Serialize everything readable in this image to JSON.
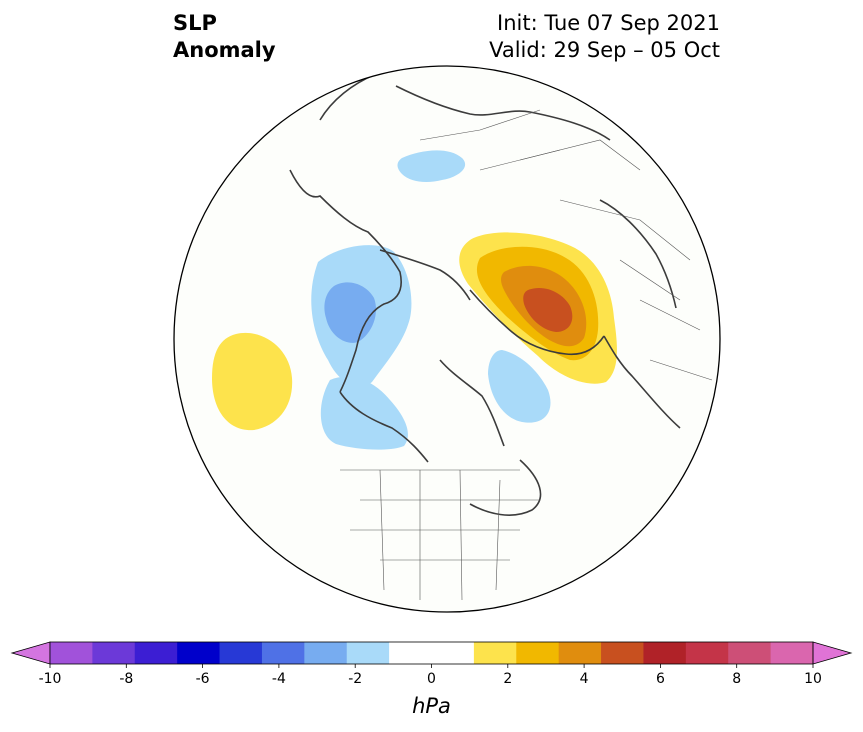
{
  "title": {
    "left_lines": [
      "SLP",
      "Anomaly"
    ],
    "right_lines": [
      "Init: Tue 07 Sep 2021",
      "Valid: 29 Sep – 05 Oct"
    ]
  },
  "map": {
    "projection": "north-polar-stereographic",
    "anomalies": [
      {
        "region": "Bering Sea / western Alaska",
        "sign": "negative",
        "peak_hpa": -3
      },
      {
        "region": "northeast Pacific",
        "sign": "negative",
        "peak_hpa": -2
      },
      {
        "region": "central North Pacific",
        "sign": "positive",
        "peak_hpa": 2
      },
      {
        "region": "Eastern Siberia / Laptev Sea",
        "sign": "negative",
        "peak_hpa": -2
      },
      {
        "region": "Scandinavia / Barents Sea",
        "sign": "positive",
        "peak_hpa": 5
      },
      {
        "region": "Greenland Sea",
        "sign": "negative",
        "peak_hpa": -2
      }
    ]
  },
  "colorbar": {
    "unit_label": "hPa",
    "ticks": [
      "-10",
      "-8",
      "-6",
      "-4",
      "-2",
      "0",
      "2",
      "4",
      "6",
      "8",
      "10"
    ],
    "colors": [
      "#d475e0",
      "#a152da",
      "#6c39d8",
      "#3c1ed3",
      "#0000cb",
      "#2739d6",
      "#4f71e6",
      "#77acf0",
      "#a9daf9",
      "#ffffff",
      "#ffffff",
      "#fde34c",
      "#f1b800",
      "#e08d0e",
      "#c8501f",
      "#b02228",
      "#c43448",
      "#cd4f77",
      "#da66ae",
      "#e073d6"
    ]
  }
}
